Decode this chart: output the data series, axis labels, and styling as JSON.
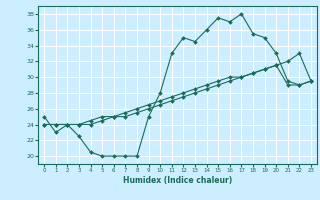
{
  "title": "",
  "xlabel": "Humidex (Indice chaleur)",
  "bg_color": "#cceeff",
  "line_color": "#1a6b5a",
  "grid_color": "#ffffff",
  "xlim": [
    -0.5,
    23.5
  ],
  "ylim": [
    19,
    39
  ],
  "yticks": [
    20,
    22,
    24,
    26,
    28,
    30,
    32,
    34,
    36,
    38
  ],
  "xticks": [
    0,
    1,
    2,
    3,
    4,
    5,
    6,
    7,
    8,
    9,
    10,
    11,
    12,
    13,
    14,
    15,
    16,
    17,
    18,
    19,
    20,
    21,
    22,
    23
  ],
  "line1_x": [
    0,
    1,
    2,
    3,
    4,
    5,
    6,
    7,
    8,
    9,
    10,
    11,
    12,
    13,
    14,
    15,
    16,
    17,
    18,
    19,
    20,
    21,
    22,
    23
  ],
  "line1_y": [
    25,
    23,
    24,
    22.5,
    20.5,
    20,
    20,
    20,
    20,
    25,
    28,
    33,
    35,
    34.5,
    36,
    37.5,
    37,
    38,
    35.5,
    35,
    33,
    29.5,
    29,
    29.5
  ],
  "line2_x": [
    0,
    1,
    2,
    3,
    4,
    5,
    6,
    7,
    8,
    9,
    10,
    11,
    12,
    13,
    14,
    15,
    16,
    17,
    18,
    19,
    20,
    21,
    22,
    23
  ],
  "line2_y": [
    24,
    24,
    24,
    24,
    24,
    24.5,
    25,
    25,
    25.5,
    26,
    26.5,
    27,
    27.5,
    28,
    28.5,
    29,
    29.5,
    30,
    30.5,
    31,
    31.5,
    32,
    33,
    29.5
  ],
  "line3_x": [
    0,
    1,
    2,
    3,
    4,
    5,
    6,
    7,
    8,
    9,
    10,
    11,
    12,
    13,
    14,
    15,
    16,
    17,
    18,
    19,
    20,
    21,
    22,
    23
  ],
  "line3_y": [
    24,
    24,
    24,
    24,
    24.5,
    25,
    25,
    25.5,
    26,
    26.5,
    27,
    27.5,
    28,
    28.5,
    29,
    29.5,
    30,
    30,
    30.5,
    31,
    31.5,
    29,
    29,
    29.5
  ]
}
